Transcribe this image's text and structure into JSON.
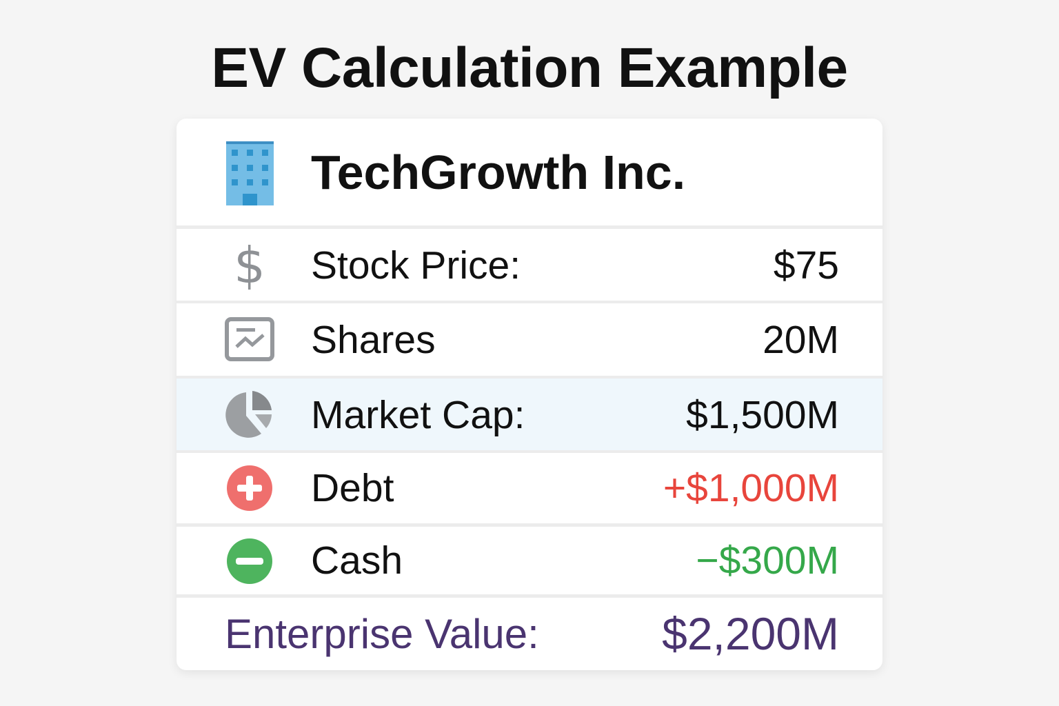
{
  "title": "EV Calculation Example",
  "company": {
    "name": "TechGrowth Inc.",
    "icon": "office-building-icon"
  },
  "rows": [
    {
      "label": "Stock Price:",
      "value": "$75",
      "icon": "dollar-sign-icon",
      "color": "#111111"
    },
    {
      "label": "Shares",
      "value": "20M",
      "icon": "stock-chart-icon",
      "color": "#111111"
    },
    {
      "label": "Market Cap:",
      "value": "$1,500M",
      "icon": "pie-chart-icon",
      "color": "#111111",
      "highlight": "#eff7fc"
    },
    {
      "label": "Debt",
      "value": "+$1,000M",
      "icon": "plus-circle-icon",
      "color": "#e8453c"
    },
    {
      "label": "Cash",
      "value": "−$300M",
      "icon": "minus-circle-icon",
      "color": "#35a84a"
    }
  ],
  "total": {
    "label": "Enterprise Value:",
    "value": "$2,200M",
    "color": "#4a3470"
  }
}
